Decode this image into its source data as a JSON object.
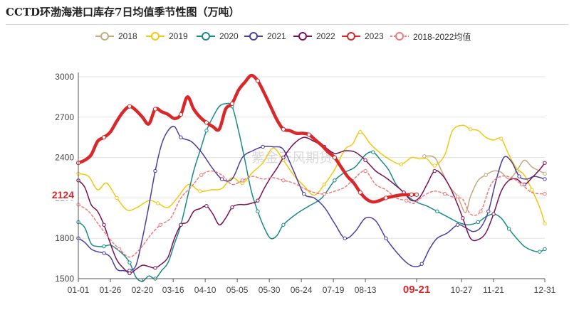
{
  "title": "CCTD环渤海港口库存7日均值季节性图（万吨）",
  "watermark": "紫金天风期货",
  "highlight_label": "2124",
  "highlight_x_label": "09-21",
  "legend": [
    {
      "name": "2018",
      "color": "#c2ab7e",
      "dashed": false
    },
    {
      "name": "2019",
      "color": "#f2c811",
      "dashed": false
    },
    {
      "name": "2020",
      "color": "#1a8a8a",
      "dashed": false
    },
    {
      "name": "2021",
      "color": "#4a3fa0",
      "dashed": false
    },
    {
      "name": "2022",
      "color": "#7a1158",
      "dashed": false
    },
    {
      "name": "2023",
      "color": "#d9272a",
      "dashed": false
    },
    {
      "name": "2018-2022均值",
      "color": "#f07a7a",
      "dashed": true
    }
  ],
  "chart_data": {
    "type": "line",
    "ylim": [
      1500,
      3000
    ],
    "yticks": [
      1500,
      1800,
      2100,
      2400,
      2700,
      3000
    ],
    "xlim": [
      0,
      364
    ],
    "xticks": [
      {
        "day": 0,
        "label": "01-01"
      },
      {
        "day": 25,
        "label": "01-26"
      },
      {
        "day": 50,
        "label": "02-20"
      },
      {
        "day": 74,
        "label": "03-16"
      },
      {
        "day": 99,
        "label": "04-10"
      },
      {
        "day": 124,
        "label": "05-05"
      },
      {
        "day": 149,
        "label": "05-30"
      },
      {
        "day": 174,
        "label": "06-24"
      },
      {
        "day": 199,
        "label": "07-19"
      },
      {
        "day": 224,
        "label": "08-13"
      },
      {
        "day": 264,
        "label": "09-21"
      },
      {
        "day": 299,
        "label": "10-27"
      },
      {
        "day": 324,
        "label": "11-21"
      },
      {
        "day": 364,
        "label": "12-31"
      }
    ],
    "series": [
      {
        "name": "2018",
        "color": "#c2ab7e",
        "width": 1.5,
        "dashed": false,
        "x": [
          270,
          278,
          284,
          290,
          296,
          302,
          306,
          312,
          318,
          324,
          330,
          336,
          342,
          348,
          354,
          360,
          364
        ],
        "y": [
          2410,
          2400,
          2290,
          2180,
          2110,
          1990,
          2110,
          2230,
          2270,
          2300,
          2290,
          2240,
          2300,
          2380,
          2330,
          2300,
          2280
        ]
      },
      {
        "name": "2019",
        "color": "#f2c811",
        "width": 1.5,
        "dashed": false,
        "x": [
          0,
          8,
          15,
          22,
          30,
          38,
          46,
          55,
          62,
          70,
          78,
          86,
          95,
          104,
          112,
          120,
          128,
          136,
          144,
          152,
          160,
          168,
          176,
          184,
          192,
          200,
          208,
          214,
          220,
          228,
          236,
          244,
          252,
          260,
          266,
          272,
          278,
          286,
          292,
          300,
          306,
          312,
          318,
          324,
          330,
          336,
          342,
          348,
          354,
          360,
          364
        ],
        "y": [
          2280,
          2260,
          2160,
          2210,
          2100,
          2010,
          2030,
          2080,
          2060,
          2030,
          2110,
          2200,
          2150,
          2160,
          2170,
          2250,
          2210,
          2290,
          2360,
          2470,
          2380,
          2270,
          2190,
          2120,
          2200,
          2310,
          2460,
          2500,
          2590,
          2500,
          2430,
          2380,
          2350,
          2400,
          2390,
          2390,
          2340,
          2420,
          2600,
          2640,
          2610,
          2600,
          2550,
          2530,
          2540,
          2420,
          2320,
          2270,
          2160,
          2030,
          1910
        ]
      },
      {
        "name": "2020",
        "color": "#1a8a8a",
        "width": 1.5,
        "dashed": false,
        "x": [
          0,
          5,
          10,
          15,
          20,
          25,
          30,
          35,
          40,
          45,
          50,
          55,
          60,
          65,
          70,
          75,
          80,
          85,
          90,
          95,
          100,
          105,
          110,
          115,
          120,
          125,
          130,
          135,
          140,
          145,
          150,
          155,
          160,
          170,
          180,
          190,
          200,
          208,
          216,
          224,
          230,
          236,
          242,
          248,
          254,
          260,
          266,
          272,
          280,
          288,
          296,
          304,
          312,
          318,
          324,
          330,
          336,
          342,
          348,
          354,
          360,
          364
        ],
        "y": [
          1920,
          1880,
          1760,
          1740,
          1740,
          1750,
          1720,
          1680,
          1620,
          1510,
          1480,
          1520,
          1500,
          1560,
          1620,
          1760,
          1900,
          2100,
          2300,
          2450,
          2600,
          2700,
          2780,
          2800,
          2780,
          2600,
          2380,
          2150,
          2000,
          1880,
          1800,
          1820,
          1900,
          1980,
          2040,
          2100,
          2230,
          2290,
          2330,
          2420,
          2440,
          2380,
          2310,
          2200,
          2140,
          2090,
          2060,
          2040,
          2000,
          1960,
          1920,
          1900,
          1920,
          1960,
          1980,
          1950,
          1870,
          1800,
          1740,
          1710,
          1700,
          1720
        ]
      },
      {
        "name": "2021",
        "color": "#4a3fa0",
        "width": 1.5,
        "dashed": false,
        "x": [
          0,
          5,
          10,
          15,
          20,
          25,
          30,
          35,
          40,
          45,
          50,
          55,
          60,
          65,
          70,
          75,
          80,
          88,
          96,
          104,
          112,
          120,
          128,
          136,
          144,
          152,
          160,
          168,
          176,
          184,
          192,
          200,
          208,
          216,
          224,
          232,
          240,
          248,
          256,
          262,
          268,
          274,
          280,
          288,
          296,
          302,
          308,
          314,
          320,
          326,
          332,
          338,
          344,
          350,
          356,
          364
        ],
        "y": [
          1800,
          1770,
          1720,
          1700,
          1690,
          1660,
          1570,
          1560,
          1560,
          1600,
          1800,
          2040,
          2300,
          2500,
          2600,
          2630,
          2550,
          2520,
          2440,
          2330,
          2240,
          2240,
          2400,
          2450,
          2480,
          2480,
          2460,
          2300,
          2130,
          2100,
          2030,
          1910,
          1800,
          1850,
          1950,
          1930,
          1800,
          1700,
          1620,
          1590,
          1610,
          1720,
          1800,
          1840,
          1900,
          1880,
          1850,
          1880,
          2000,
          2230,
          2400,
          2370,
          2260,
          2240,
          2260,
          2240
        ]
      },
      {
        "name": "2022",
        "color": "#7a1158",
        "width": 1.5,
        "dashed": false,
        "x": [
          0,
          5,
          10,
          15,
          20,
          25,
          30,
          35,
          40,
          45,
          50,
          55,
          60,
          65,
          70,
          75,
          80,
          85,
          90,
          95,
          100,
          105,
          110,
          115,
          120,
          125,
          130,
          135,
          140,
          145,
          150,
          155,
          160,
          168,
          176,
          184,
          192,
          200,
          208,
          216,
          224,
          232,
          240,
          248,
          254,
          260,
          266,
          272,
          278,
          284,
          290,
          296,
          300,
          306,
          312,
          318,
          324,
          330,
          336,
          342,
          348,
          354,
          360,
          364
        ],
        "y": [
          2230,
          2180,
          2050,
          2000,
          1900,
          1760,
          1640,
          1580,
          1540,
          1570,
          1600,
          1590,
          1580,
          1610,
          1660,
          1800,
          1900,
          1920,
          2000,
          2020,
          2040,
          1980,
          1900,
          1950,
          2030,
          2050,
          2050,
          2060,
          2080,
          2170,
          2250,
          2320,
          2400,
          2500,
          2550,
          2520,
          2480,
          2430,
          2450,
          2440,
          2380,
          2300,
          2250,
          2190,
          2140,
          2080,
          2100,
          2200,
          2300,
          2270,
          2180,
          2050,
          1950,
          1800,
          1790,
          1840,
          1980,
          2150,
          2230,
          2240,
          2200,
          2250,
          2310,
          2360
        ]
      },
      {
        "name": "2023",
        "color": "#d9272a",
        "width": 4.5,
        "dashed": false,
        "x": [
          0,
          5,
          10,
          15,
          20,
          25,
          30,
          35,
          40,
          45,
          50,
          55,
          60,
          65,
          70,
          75,
          80,
          85,
          90,
          95,
          100,
          105,
          110,
          115,
          120,
          125,
          130,
          135,
          140,
          145,
          150,
          155,
          160,
          165,
          170,
          175,
          180,
          185,
          190,
          195,
          200,
          205,
          210,
          215,
          220,
          225,
          230,
          235,
          240,
          245,
          250,
          255,
          260,
          264
        ],
        "y": [
          2360,
          2380,
          2420,
          2520,
          2550,
          2590,
          2670,
          2740,
          2780,
          2750,
          2700,
          2650,
          2760,
          2740,
          2720,
          2690,
          2720,
          2850,
          2760,
          2700,
          2660,
          2630,
          2610,
          2760,
          2800,
          2900,
          2960,
          3010,
          2970,
          2880,
          2780,
          2680,
          2610,
          2600,
          2580,
          2580,
          2570,
          2530,
          2490,
          2440,
          2400,
          2330,
          2260,
          2210,
          2140,
          2090,
          2070,
          2080,
          2100,
          2110,
          2120,
          2124,
          2124,
          2124
        ]
      },
      {
        "name": "2018-2022均值",
        "color": "#f07a7a",
        "width": 1.5,
        "dashed": true,
        "x": [
          0,
          8,
          16,
          24,
          32,
          40,
          48,
          56,
          64,
          72,
          80,
          88,
          96,
          104,
          112,
          120,
          128,
          136,
          144,
          152,
          160,
          168,
          176,
          184,
          192,
          200,
          208,
          216,
          224,
          232,
          240,
          248,
          256,
          262,
          270,
          278,
          286,
          294,
          300,
          306,
          314,
          322,
          330,
          338,
          346,
          354,
          364
        ],
        "y": [
          2050,
          2000,
          1900,
          1800,
          1720,
          1660,
          1720,
          1820,
          1900,
          1950,
          2100,
          2180,
          2270,
          2300,
          2270,
          2200,
          2230,
          2260,
          2240,
          2250,
          2230,
          2210,
          2170,
          2140,
          2130,
          2150,
          2180,
          2250,
          2300,
          2200,
          2160,
          2100,
          2080,
          2060,
          2120,
          2150,
          2130,
          2100,
          2090,
          1980,
          2000,
          2200,
          2260,
          2250,
          2200,
          2140,
          2130
        ]
      }
    ]
  }
}
